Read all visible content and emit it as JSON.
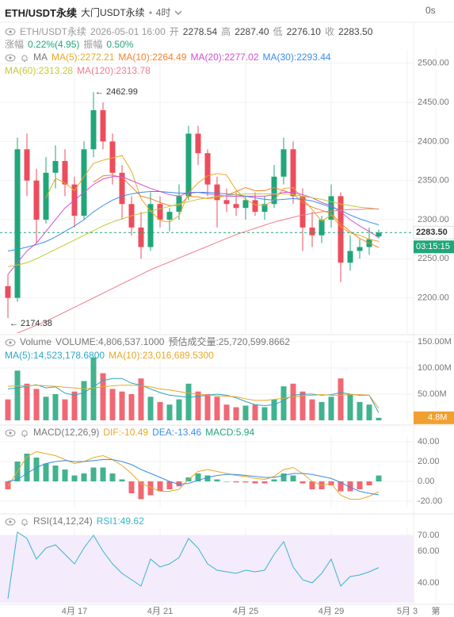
{
  "header": {
    "symbol": "ETH/USDT永续",
    "market": "大门USDT永续",
    "interval": "4时",
    "refresh": "0s"
  },
  "info": {
    "symbol": "ETH/USDT永续",
    "time": "2026-05-01 16:00",
    "fields": [
      {
        "label": "开",
        "value": "2278.54"
      },
      {
        "label": "高",
        "value": "2287.40"
      },
      {
        "label": "低",
        "value": "2276.10"
      },
      {
        "label": "收",
        "value": "2283.50"
      }
    ],
    "change_label": "涨幅",
    "change": "0.22%(4.95)",
    "amplitude_label": "振幅",
    "amplitude": "0.50%"
  },
  "chart_data": [
    {
      "type": "candlestick",
      "title": "MA",
      "up_color": "#21a67a",
      "down_color": "#ec4d5c",
      "grid": true,
      "categories": [
        null,
        null,
        null,
        null,
        null,
        null,
        null,
        "4月 17",
        null,
        null,
        null,
        null,
        null,
        null,
        null,
        null,
        "4月 21",
        null,
        null,
        null,
        null,
        null,
        null,
        null,
        null,
        "4月 25",
        null,
        null,
        null,
        null,
        null,
        null,
        null,
        null,
        "4月 29",
        null,
        null,
        null,
        null,
        null,
        null,
        null,
        "5月 3",
        null,
        null,
        "第"
      ],
      "open": [
        2215,
        2200,
        2390,
        2350,
        2300,
        2360,
        2375,
        2345,
        2305,
        2390,
        2440,
        2400,
        2360,
        2320,
        2290,
        2265,
        2320,
        2300,
        2310,
        2330,
        2410,
        2385,
        2345,
        2325,
        2320,
        2315,
        2325,
        2310,
        2320,
        2355,
        2390,
        2330,
        2290,
        2280,
        2300,
        2330,
        2245,
        2260,
        2265,
        2278.54,
        null,
        null,
        null,
        null,
        null,
        null
      ],
      "high": [
        2230,
        2405,
        2410,
        2365,
        2380,
        2395,
        2390,
        2355,
        2400,
        2462.99,
        2450,
        2410,
        2370,
        2330,
        2310,
        2335,
        2330,
        2315,
        2345,
        2420,
        2420,
        2390,
        2355,
        2340,
        2335,
        2330,
        2335,
        2330,
        2370,
        2405,
        2400,
        2340,
        2310,
        2305,
        2345,
        2335,
        2280,
        2275,
        2290,
        2287.4,
        null,
        null,
        null,
        null,
        null,
        null
      ],
      "low": [
        2174.38,
        2195,
        2330,
        2270,
        2295,
        2340,
        2330,
        2290,
        2300,
        2380,
        2390,
        2345,
        2300,
        2280,
        2250,
        2260,
        2290,
        2285,
        2300,
        2325,
        2370,
        2330,
        2290,
        2310,
        2305,
        2300,
        2305,
        2300,
        2315,
        2345,
        2320,
        2260,
        2265,
        2270,
        2290,
        2220,
        2235,
        2250,
        2255,
        2276.1,
        null,
        null,
        null,
        null,
        null,
        null
      ],
      "close": [
        2200,
        2390,
        2350,
        2300,
        2360,
        2375,
        2345,
        2305,
        2390,
        2440,
        2400,
        2360,
        2320,
        2290,
        2265,
        2320,
        2300,
        2310,
        2330,
        2410,
        2385,
        2345,
        2325,
        2320,
        2315,
        2325,
        2310,
        2320,
        2355,
        2390,
        2330,
        2290,
        2280,
        2300,
        2330,
        2245,
        2260,
        2265,
        2275,
        2283.5,
        null,
        null,
        null,
        null,
        null,
        null
      ],
      "series": [
        {
          "name": "MA(5):2272.21",
          "color": "#e9a825",
          "values": [
            null,
            null,
            null,
            null,
            2328,
            2353,
            2347,
            2337,
            2355,
            2372,
            2376,
            2379,
            2382,
            2362,
            2327,
            2311,
            2299,
            2297,
            2305,
            2334,
            2347,
            2356,
            2359,
            2357,
            2338,
            2326,
            2319,
            2318,
            2325,
            2340,
            2341,
            2327,
            2313,
            2298,
            2306,
            2291,
            2283,
            2280,
            2275,
            2272.21,
            null,
            null,
            null,
            null,
            null,
            null
          ]
        },
        {
          "name": "MA(10):2264.49",
          "color": "#f5822a",
          "values": [
            null,
            null,
            null,
            null,
            null,
            null,
            null,
            null,
            null,
            2348,
            2356,
            2357,
            2354,
            2342,
            2330,
            2327,
            2322,
            2318,
            2318,
            2330,
            2329,
            2327,
            2328,
            2331,
            2336,
            2341,
            2337,
            2337,
            2341,
            2337,
            2333,
            2322,
            2316,
            2312,
            2308,
            2295,
            2285,
            2276,
            2270,
            2264.49,
            null,
            null,
            null,
            null,
            null,
            null
          ]
        },
        {
          "name": "MA(20):2277.02",
          "color": "#d44fd0",
          "values": [
            2230,
            2245,
            2260,
            2270,
            2285,
            2300,
            2315,
            2325,
            2335,
            2345,
            2352,
            2355,
            2355,
            2350,
            2345,
            2340,
            2336,
            2332,
            2330,
            2335,
            2335,
            2333,
            2332,
            2330,
            2330,
            2330,
            2330,
            2330,
            2332,
            2335,
            2335,
            2332,
            2328,
            2322,
            2318,
            2310,
            2300,
            2292,
            2285,
            2277.02,
            null,
            null,
            null,
            null,
            null,
            null
          ]
        },
        {
          "name": "MA(30):2293.44",
          "color": "#3a8ee6",
          "values": [
            2260,
            2262,
            2265,
            2268,
            2272,
            2278,
            2285,
            2292,
            2300,
            2310,
            2318,
            2325,
            2330,
            2333,
            2335,
            2336,
            2336,
            2335,
            2334,
            2334,
            2335,
            2335,
            2334,
            2333,
            2332,
            2330,
            2328,
            2326,
            2325,
            2326,
            2327,
            2326,
            2324,
            2320,
            2316,
            2312,
            2306,
            2301,
            2297,
            2293.44,
            null,
            null,
            null,
            null,
            null,
            null
          ]
        },
        {
          "name": "MA(60):2313.28",
          "color": "#c2c935",
          "values": [
            2240,
            2242,
            2245,
            2250,
            2256,
            2262,
            2268,
            2274,
            2280,
            2286,
            2292,
            2297,
            2301,
            2305,
            2308,
            2311,
            2314,
            2317,
            2320,
            2323,
            2326,
            2328,
            2330,
            2331,
            2332,
            2333,
            2333,
            2333,
            2333,
            2333,
            2332,
            2330,
            2328,
            2326,
            2323,
            2320,
            2318,
            2316,
            2315,
            2313.28,
            null,
            null,
            null,
            null,
            null,
            null
          ]
        },
        {
          "name": "MA(120):2313.78",
          "color": "#f07c8e",
          "values": [
            2150,
            2155,
            2160,
            2165,
            2170,
            2176,
            2182,
            2188,
            2194,
            2200,
            2206,
            2212,
            2218,
            2224,
            2230,
            2236,
            2241,
            2246,
            2251,
            2256,
            2261,
            2266,
            2271,
            2276,
            2281,
            2285,
            2289,
            2293,
            2297,
            2300,
            2303,
            2306,
            2308,
            2310,
            2311,
            2312,
            2313,
            2313,
            2314,
            2313.78,
            null,
            null,
            null,
            null,
            null,
            null
          ]
        }
      ],
      "ylim": [
        2155,
        2518
      ],
      "yticks": [
        {
          "value": 2200,
          "label": "2200.00"
        },
        {
          "value": 2250,
          "label": "2250.00"
        },
        {
          "value": 2300,
          "label": "2300.00"
        },
        {
          "value": 2350,
          "label": "2350.00"
        },
        {
          "value": 2400,
          "label": "2400.00"
        },
        {
          "value": 2450,
          "label": "2450.00"
        },
        {
          "value": 2500,
          "label": "2500.00"
        }
      ],
      "high_label": "← 2462.99",
      "low_label": "← 2174.38",
      "last_price": 2283.5,
      "last_price_label": "2283.50",
      "countdown": "03:15:15"
    },
    {
      "type": "bar",
      "title": "Volume",
      "subtitle": "VOLUME:4,806,537.1000",
      "estimate": "预估成交量:25,720,599.8662",
      "grid": true,
      "values": [
        40000000,
        95000000,
        70000000,
        60000000,
        45000000,
        50000000,
        40000000,
        55000000,
        75000000,
        120000000,
        90000000,
        60000000,
        55000000,
        50000000,
        80000000,
        45000000,
        35000000,
        30000000,
        40000000,
        70000000,
        55000000,
        50000000,
        45000000,
        30000000,
        25000000,
        28000000,
        30000000,
        25000000,
        40000000,
        65000000,
        70000000,
        55000000,
        40000000,
        35000000,
        45000000,
        80000000,
        50000000,
        35000000,
        30000000,
        4806537.1,
        null,
        null,
        null,
        null,
        null,
        null
      ],
      "series": [
        {
          "name": "MA(5):14,523,178.6800",
          "color": "#2aa7c9",
          "values": [
            60000000,
            62000000,
            65000000,
            68000000,
            62000000,
            64000000,
            52000000,
            48000000,
            53000000,
            64000000,
            76000000,
            80000000,
            80000000,
            71000000,
            67000000,
            60000000,
            53000000,
            48000000,
            46000000,
            44000000,
            46000000,
            48000000,
            50000000,
            48000000,
            43000000,
            36000000,
            30000000,
            28000000,
            30000000,
            38000000,
            48000000,
            50000000,
            50000000,
            48000000,
            49000000,
            53000000,
            50000000,
            48000000,
            48000000,
            14523178.68,
            null,
            null,
            null,
            null,
            null,
            null
          ]
        },
        {
          "name": "MA(10):23,016,689.5300",
          "color": "#e9a825",
          "values": [
            65000000,
            66000000,
            66000000,
            67000000,
            66000000,
            65000000,
            63000000,
            62000000,
            60000000,
            62000000,
            64000000,
            66000000,
            67000000,
            67000000,
            66000000,
            64000000,
            60000000,
            58000000,
            55000000,
            52000000,
            50000000,
            48000000,
            47000000,
            46000000,
            45000000,
            41000000,
            38000000,
            38000000,
            40000000,
            42000000,
            45000000,
            47000000,
            48000000,
            49000000,
            48000000,
            48000000,
            49000000,
            49000000,
            48000000,
            23016689.53,
            null,
            null,
            null,
            null,
            null,
            null
          ]
        }
      ],
      "ylim": [
        0,
        150000000
      ],
      "yticks": [
        {
          "value": 50000000,
          "label": "50.00M"
        },
        {
          "value": 100000000,
          "label": "100.00M"
        },
        {
          "value": 150000000,
          "label": "150.00M"
        }
      ],
      "last_value_label": "4.8M",
      "label_color": "#f0a030"
    },
    {
      "type": "macd",
      "title": "MACD(12,26,9)",
      "up_color": "#21a67a",
      "down_color": "#ec4d5c",
      "grid": true,
      "values": [
        -8,
        20,
        28,
        24,
        18,
        16,
        12,
        6,
        8,
        14,
        14,
        8,
        2,
        -12,
        -18,
        -14,
        -10,
        -8,
        -5,
        4,
        8,
        6,
        2,
        0,
        -1,
        -1,
        -2,
        -2,
        2,
        8,
        6,
        -2,
        -8,
        -8,
        -4,
        -10,
        -10,
        -8,
        -4,
        5.94,
        null,
        null,
        null,
        null,
        null,
        null
      ],
      "series": [
        {
          "name": "DIF:-10.49",
          "color": "#e9a825",
          "values": [
            -5,
            10,
            25,
            30,
            28,
            26,
            22,
            18,
            20,
            24,
            26,
            22,
            16,
            8,
            -2,
            -6,
            -10,
            -10,
            -8,
            2,
            10,
            12,
            10,
            8,
            6,
            5,
            3,
            2,
            5,
            12,
            14,
            8,
            0,
            -4,
            -2,
            -14,
            -18,
            -18,
            -15,
            -10.49,
            null,
            null,
            null,
            null,
            null,
            null
          ]
        },
        {
          "name": "DEA:-13.46",
          "color": "#3a8ee6",
          "values": [
            0,
            2,
            8,
            14,
            18,
            20,
            21,
            20,
            20,
            21,
            22,
            22,
            20,
            17,
            12,
            8,
            4,
            0,
            -3,
            -2,
            1,
            4,
            6,
            7,
            7,
            6,
            5,
            4,
            4,
            6,
            8,
            8,
            7,
            5,
            3,
            -1,
            -6,
            -10,
            -12,
            -13.46,
            null,
            null,
            null,
            null,
            null,
            null
          ]
        }
      ],
      "value_label": "MACD:5.94",
      "ylim": [
        -26.4,
        45.6
      ],
      "yticks": [
        {
          "value": -20,
          "label": "-20.00"
        },
        {
          "value": 0,
          "label": "0.00"
        },
        {
          "value": 20,
          "label": "20.00"
        },
        {
          "value": 40,
          "label": "40.00"
        }
      ]
    },
    {
      "type": "line",
      "title": "RSI(14,12,24)",
      "band_color": "#f4ebfd",
      "grid": true,
      "series": [
        {
          "name": "RSI1:49.62",
          "color": "#36b6c9",
          "values": [
            30,
            72,
            68,
            55,
            62,
            64,
            58,
            52,
            62,
            70,
            60,
            52,
            46,
            42,
            38,
            55,
            50,
            52,
            56,
            68,
            62,
            52,
            48,
            47,
            46,
            48,
            47,
            48,
            58,
            66,
            50,
            42,
            40,
            46,
            55,
            38,
            44,
            45,
            47,
            49.62,
            null,
            null,
            null,
            null,
            null,
            null
          ]
        }
      ],
      "ylim": [
        27.5,
        75
      ],
      "yticks": [
        {
          "value": 40,
          "label": "40.00"
        },
        {
          "value": 60,
          "label": "60.00"
        },
        {
          "value": 70,
          "label": "70.00"
        }
      ]
    }
  ]
}
